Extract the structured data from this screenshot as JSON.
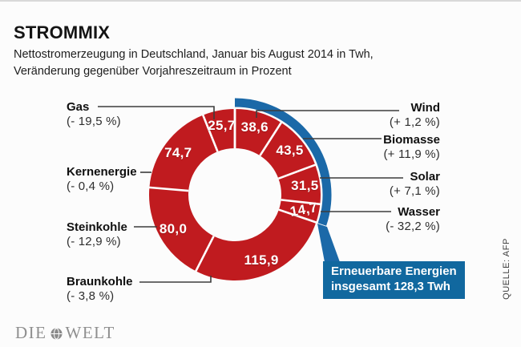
{
  "header": {
    "title": "STROMMIX",
    "subtitle_line1": "Nettostromerzeugung in Deutschland, Januar bis August 2014 in Twh,",
    "subtitle_line2": "Veränderung gegenüber Vorjahreszeitraum in Prozent"
  },
  "chart_data": {
    "type": "pie",
    "variant": "donut",
    "title": "STROMMIX",
    "unit": "Twh",
    "start_angle_deg": 0,
    "direction": "clockwise",
    "segments": [
      {
        "name": "Wind",
        "value": 38.6,
        "value_label": "38,6",
        "change_label": "(+ 1,2 %)",
        "renewable": true
      },
      {
        "name": "Biomasse",
        "value": 43.5,
        "value_label": "43,5",
        "change_label": "(+ 11,9 %)",
        "renewable": true
      },
      {
        "name": "Solar",
        "value": 31.5,
        "value_label": "31,5",
        "change_label": "(+ 7,1 %)",
        "renewable": true
      },
      {
        "name": "Wasser",
        "value": 14.7,
        "value_label": "14,7",
        "change_label": "(- 32,2 %)",
        "renewable": true
      },
      {
        "name": "Braunkohle",
        "value": 115.9,
        "value_label": "115,9",
        "change_label": "(- 3,8 %)",
        "renewable": false
      },
      {
        "name": "Steinkohle",
        "value": 80.0,
        "value_label": "80,0",
        "change_label": "(- 12,9 %)",
        "renewable": false
      },
      {
        "name": "Kernenergie",
        "value": 74.7,
        "value_label": "74,7",
        "change_label": "(- 0,4 %)",
        "renewable": false
      },
      {
        "name": "Gas",
        "value": 25.7,
        "value_label": "25,7",
        "change_label": "(- 19,5 %)",
        "renewable": false
      }
    ],
    "renewables_total": 128.3,
    "colors": {
      "segment": "#c01b1f",
      "highlight": "#1b69a8",
      "callout_bg": "#11689f",
      "separator": "#ffffff",
      "value_text": "#ffffff"
    }
  },
  "callout": {
    "line1": "Erneuerbare Energien",
    "line2": "insgesamt 128,3 Twh"
  },
  "source": {
    "text": "QUELLE: AFP"
  },
  "brand": {
    "word1": "DIE",
    "word2": "WELT"
  }
}
